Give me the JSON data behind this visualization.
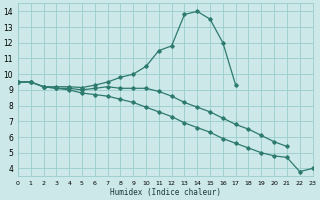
{
  "xlabel": "Humidex (Indice chaleur)",
  "bg_color": "#cce8e8",
  "grid_color": "#99cccc",
  "line_color": "#2d7a6e",
  "x_values": [
    0,
    1,
    2,
    3,
    4,
    5,
    6,
    7,
    8,
    9,
    10,
    11,
    12,
    13,
    14,
    15,
    16,
    17,
    18,
    19,
    20,
    21,
    22,
    23
  ],
  "y_top": [
    9.5,
    9.5,
    9.2,
    9.2,
    9.2,
    9.15,
    9.3,
    9.5,
    9.8,
    10.0,
    10.5,
    11.5,
    11.8,
    13.8,
    14.0,
    13.5,
    12.0,
    9.3,
    null,
    null,
    null,
    null,
    null,
    null
  ],
  "y_mid": [
    9.5,
    9.5,
    9.2,
    9.1,
    9.1,
    9.0,
    9.1,
    9.2,
    9.1,
    9.1,
    9.1,
    8.9,
    8.6,
    8.2,
    7.9,
    7.6,
    7.2,
    6.8,
    6.5,
    6.1,
    5.7,
    5.4,
    null,
    null
  ],
  "y_bot": [
    9.5,
    9.5,
    9.2,
    9.1,
    9.0,
    8.8,
    8.7,
    8.6,
    8.4,
    8.2,
    7.9,
    7.6,
    7.3,
    6.9,
    6.6,
    6.3,
    5.9,
    5.6,
    5.3,
    5.0,
    4.8,
    4.7,
    3.8,
    4.0
  ],
  "xlim": [
    0,
    23
  ],
  "ylim": [
    3.5,
    14.5
  ],
  "yticks": [
    4,
    5,
    6,
    7,
    8,
    9,
    10,
    11,
    12,
    13,
    14
  ],
  "xticks": [
    0,
    1,
    2,
    3,
    4,
    5,
    6,
    7,
    8,
    9,
    10,
    11,
    12,
    13,
    14,
    15,
    16,
    17,
    18,
    19,
    20,
    21,
    22,
    23
  ],
  "marker_x_top": [
    0,
    1,
    2,
    3,
    4,
    5,
    7,
    8,
    10,
    11,
    12,
    13,
    14,
    15,
    16,
    17
  ],
  "marker_x_mid": [
    0,
    1,
    2,
    3,
    5,
    7,
    9,
    10,
    12,
    14,
    16,
    18,
    19,
    20,
    21
  ],
  "marker_x_bot": [
    0,
    1,
    2,
    4,
    6,
    8,
    10,
    12,
    14,
    16,
    18,
    20,
    21,
    22,
    23
  ]
}
